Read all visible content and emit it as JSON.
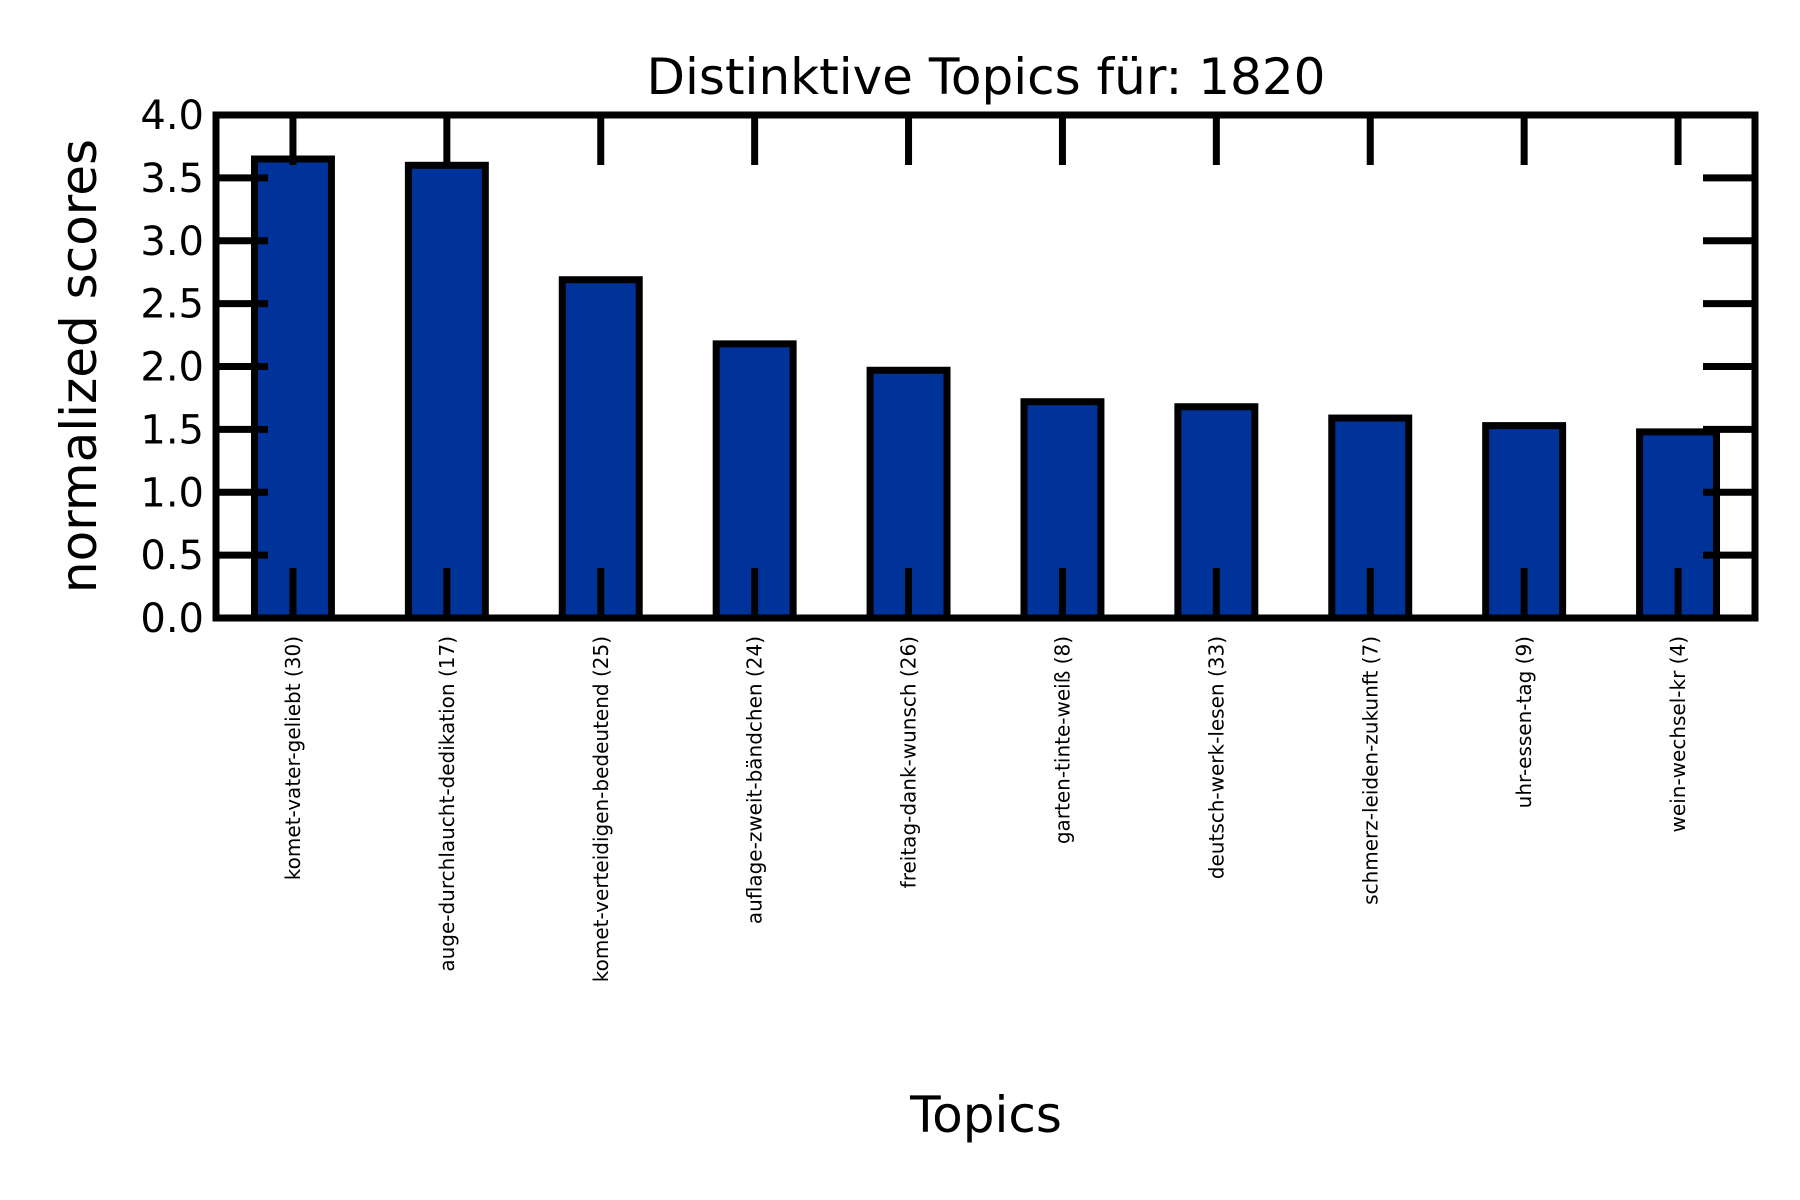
{
  "chart_data": {
    "type": "bar",
    "title": "Distinktive Topics für: 1820",
    "x_label": "Topics",
    "y_label": "normalized scores",
    "categories": [
      "komet-vater-geliebt (30)",
      "auge-durchlaucht-dedikation (17)",
      "komet-verteidigen-bedeutend (25)",
      "auflage-zweit-bändchen (24)",
      "freitag-dank-wunsch (26)",
      "garten-tinte-weiß (8)",
      "deutsch-werk-lesen (33)",
      "schmerz-leiden-zukunft (7)",
      "uhr-essen-tag (9)",
      "wein-wechsel-kr (4)"
    ],
    "values": [
      3.65,
      3.6,
      2.69,
      2.18,
      1.97,
      1.72,
      1.68,
      1.59,
      1.53,
      1.48
    ],
    "color": "#003399",
    "ylim": [
      0,
      4
    ],
    "yticks": [
      {
        "value": 0,
        "label": "0.0"
      },
      {
        "value": 0.5,
        "label": "0.5"
      },
      {
        "value": 1,
        "label": "1.0"
      },
      {
        "value": 1.5,
        "label": "1.5"
      },
      {
        "value": 2,
        "label": "2.0"
      },
      {
        "value": 2.5,
        "label": "2.5"
      },
      {
        "value": 3,
        "label": "3.0"
      },
      {
        "value": 3.5,
        "label": "3.5"
      },
      {
        "value": 4,
        "label": "4.0"
      }
    ],
    "grid": false
  }
}
